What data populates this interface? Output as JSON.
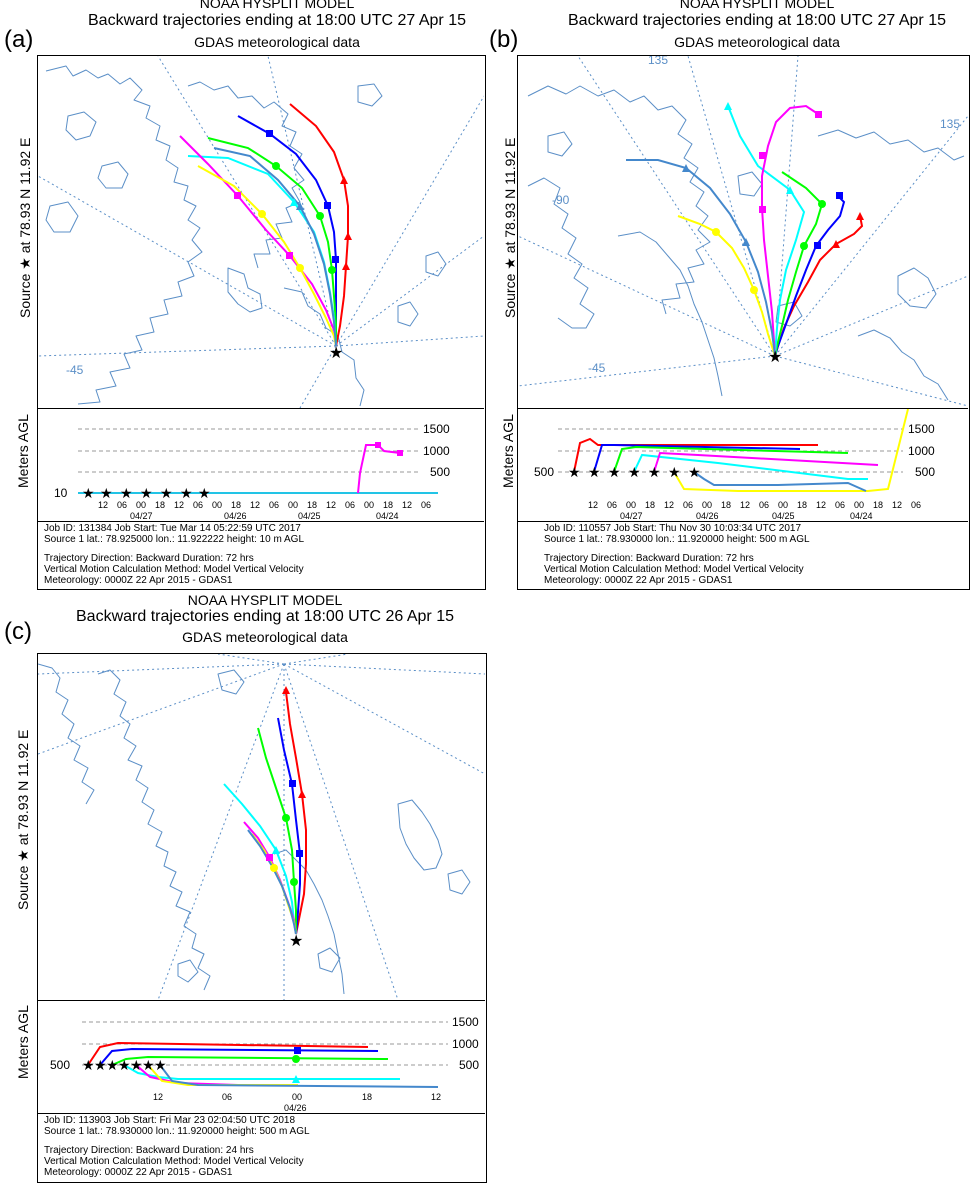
{
  "chart_data": [
    {
      "type": "map-trajectory",
      "panel_label": "(a)",
      "title_lines": [
        "NOAA HYSPLIT MODEL",
        "Backward trajectories ending at 18:00 UTC 27 Apr 15",
        "GDAS meteorological data"
      ],
      "source_label": "Source ★ at  78.93 N  11.92 E",
      "height_axis_label": "Meters AGL",
      "height_ticks": [
        1500,
        1000,
        500
      ],
      "ground_label": "10",
      "map_labels": [
        "-45"
      ],
      "time_ticks": [
        "12",
        "06",
        "00",
        "18",
        "12",
        "06",
        "00",
        "18",
        "12",
        "06",
        "00",
        "18",
        "12",
        "06",
        "00",
        "18",
        "12",
        "06"
      ],
      "date_labels": [
        "04/27",
        "04/26",
        "04/25",
        "04/24"
      ],
      "series": [
        {
          "color": "#ff0000",
          "marker": "triangle",
          "height_profile": [
            10,
            10,
            10,
            10,
            10,
            10
          ]
        },
        {
          "color": "#0000ff",
          "marker": "square",
          "height_profile": [
            10,
            10,
            10,
            10,
            10,
            10
          ]
        },
        {
          "color": "#00ff00",
          "marker": "circle",
          "height_profile": [
            10,
            10,
            10,
            10,
            10,
            10
          ]
        },
        {
          "color": "#00ffff",
          "marker": "triangle",
          "height_profile": [
            10,
            10,
            10,
            10,
            10,
            10
          ]
        },
        {
          "color": "#ff00ff",
          "marker": "square",
          "height_profile": [
            10,
            10,
            10,
            1000,
            1100,
            950
          ]
        },
        {
          "color": "#ffff00",
          "marker": "circle",
          "height_profile": [
            10,
            10,
            10,
            10,
            10,
            10
          ]
        },
        {
          "color": "#4488cc",
          "marker": "triangle",
          "height_profile": [
            10,
            10,
            10,
            10,
            10,
            10
          ]
        }
      ],
      "info_lines": [
        "Job ID: 131384              Job Start: Tue Mar 14 05:22:59 UTC 2017",
        "Source 1     lat.: 78.925000    lon.: 11.922222    height: 10 m AGL",
        "",
        "Trajectory Direction: Backward      Duration: 72 hrs",
        "Vertical Motion Calculation Method:      Model Vertical Velocity",
        "Meteorology: 0000Z 22 Apr 2015 - GDAS1"
      ]
    },
    {
      "type": "map-trajectory",
      "panel_label": "(b)",
      "title_lines": [
        "NOAA HYSPLIT MODEL",
        "Backward trajectories ending at 18:00 UTC 27 Apr 15",
        "GDAS meteorological data"
      ],
      "source_label": "Source ★ at  78.93 N  11.92 E",
      "height_axis_label": "Meters AGL",
      "height_ticks": [
        1500,
        1000,
        500
      ],
      "ground_label": "500",
      "map_labels": [
        "135",
        "135",
        "-90",
        "-45"
      ],
      "time_ticks": [
        "12",
        "06",
        "00",
        "18",
        "12",
        "06",
        "00",
        "18",
        "12",
        "06",
        "00",
        "18",
        "12",
        "06",
        "00",
        "18",
        "12",
        "06"
      ],
      "date_labels": [
        "04/27",
        "04/26",
        "04/25",
        "04/24"
      ],
      "series": [
        {
          "color": "#ff0000",
          "marker": "triangle"
        },
        {
          "color": "#0000ff",
          "marker": "square"
        },
        {
          "color": "#00ff00",
          "marker": "circle"
        },
        {
          "color": "#00ffff",
          "marker": "triangle"
        },
        {
          "color": "#ff00ff",
          "marker": "square"
        },
        {
          "color": "#ffff00",
          "marker": "circle"
        },
        {
          "color": "#4488cc",
          "marker": "triangle"
        }
      ],
      "info_lines": [
        "Job ID: 110557              Job Start: Thu Nov 30 10:03:34 UTC 2017",
        "Source 1     lat.: 78.930000    lon.: 11.920000    height: 500 m AGL",
        "",
        "Trajectory Direction: Backward      Duration: 72 hrs",
        "Vertical Motion Calculation Method:      Model Vertical Velocity",
        "Meteorology: 0000Z 22 Apr 2015 - GDAS1"
      ]
    },
    {
      "type": "map-trajectory",
      "panel_label": "(c)",
      "title_lines": [
        "NOAA HYSPLIT MODEL",
        "Backward trajectories ending at 18:00 UTC 26 Apr 15",
        "GDAS meteorological data"
      ],
      "source_label": "Source ★ at  78.93 N  11.92 E",
      "height_axis_label": "Meters AGL",
      "height_ticks": [
        1500,
        1000,
        500
      ],
      "ground_label": "500",
      "map_labels": [],
      "time_ticks": [
        "12",
        "06",
        "00",
        "18",
        "12"
      ],
      "date_labels": [
        "04/26"
      ],
      "series": [
        {
          "color": "#ff0000",
          "marker": "triangle"
        },
        {
          "color": "#0000ff",
          "marker": "square"
        },
        {
          "color": "#00ff00",
          "marker": "circle"
        },
        {
          "color": "#00ffff",
          "marker": "triangle"
        },
        {
          "color": "#ff00ff",
          "marker": "square"
        },
        {
          "color": "#ffff00",
          "marker": "circle"
        },
        {
          "color": "#4488cc",
          "marker": "triangle"
        }
      ],
      "info_lines": [
        "Job ID: 113903              Job Start: Fri Mar 23 02:04:50 UTC 2018",
        "Source 1     lat.: 78.930000    lon.: 11.920000    height: 500 m AGL",
        "",
        "Trajectory Direction: Backward      Duration: 24 hrs",
        "Vertical Motion Calculation Method:      Model Vertical Velocity",
        "Meteorology: 0000Z 22 Apr 2015 - GDAS1"
      ]
    }
  ]
}
